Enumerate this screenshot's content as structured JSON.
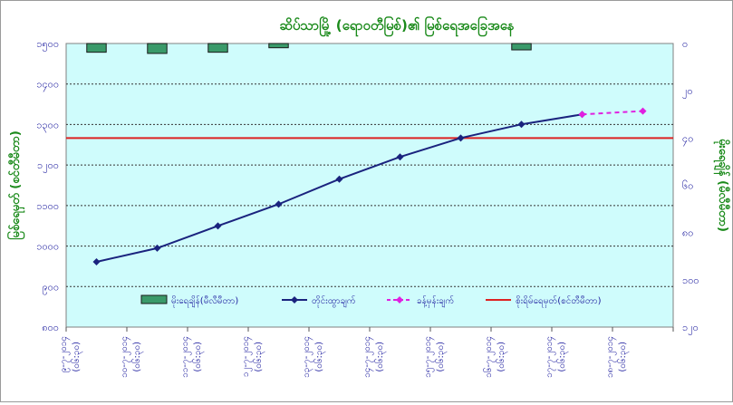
{
  "chart_data": {
    "type": "bar+line",
    "title": "ဆိပ်သာမြို့ (ရောဝတီမြစ်)၏ မြစ်ရေအခြေအနေ",
    "ylabel_left": "မြစ်ရေမှတ် (စင်တီမီတာ)",
    "ylabel_right": "မိုးရေချိန် (မီလီမီတာ)",
    "y_left_range": [
      900,
      1500
    ],
    "y_left_ticks": [
      "၁၅၀၀",
      "၁၄၀၀",
      "၁၃၀၀",
      "၁၂၀၀",
      "၁၁၀၀",
      "၁၀၀၀",
      "၉၀၀",
      "၈၀၀"
    ],
    "y_right_range": [
      0,
      120
    ],
    "y_right_ticks": [
      "၀",
      "၂၀",
      "၄၀",
      "၆၀",
      "၈၀",
      "၁၀၀",
      "၁၂၀"
    ],
    "categories": [
      [
        "၉-၇-၂၀၁၄",
        "(၀၆:၃၀)"
      ],
      [
        "၁၀-၇-၂၀၁၄",
        "(၀၆:၃၀)"
      ],
      [
        "၁၁-၇-၂၀၁၄",
        "(၀၆:၃၀)"
      ],
      [
        "၁၂-၇-၂၀၁၄",
        "(၀၆:၃၀)"
      ],
      [
        "၁၃-၇-၂၀၁၄",
        "(၀၆:၃၀)"
      ],
      [
        "၁၄-၇-၂၀၁၄",
        "(၀၆:၃၀)"
      ],
      [
        "၁၅-၇-၂၀၁၄",
        "(၀၆:၃၀)"
      ],
      [
        "၁၆-၇-၂၀၁၄",
        "(၀၆:၃၀)"
      ],
      [
        "၁၇-၇-၂၀၁၄",
        "(၀၆:၃၀)"
      ],
      [
        "၁၈-၇-၂၀၁၄",
        "(၀၆:၃၀)"
      ]
    ],
    "series": [
      {
        "name": "မိုးရေချိန်(မီလီမီတာ)",
        "kind": "bar",
        "axis": "right",
        "color": "#3a9a6a",
        "values": [
          3.7,
          4.2,
          3.7,
          1.8,
          null,
          null,
          null,
          2.7,
          null,
          null
        ]
      },
      {
        "name": "တိုင်းထွာချက်",
        "kind": "line",
        "axis": "left",
        "color": "#1a237e",
        "values": [
          1038,
          1067,
          1114,
          1160,
          1213,
          1260,
          1300,
          1329,
          1350,
          null
        ]
      },
      {
        "name": "ခန့်မှန်းချက်",
        "kind": "line-dashed",
        "axis": "left",
        "color": "#e020e0",
        "values": [
          null,
          null,
          null,
          null,
          null,
          null,
          null,
          null,
          1350,
          1357
        ]
      },
      {
        "name": "စိုးရိမ်ရေမှတ်(စင်တီမီတာ)",
        "kind": "hline",
        "axis": "left",
        "color": "#dd2222",
        "value": 1300
      }
    ],
    "grid": "horizontal-dotted",
    "legend_position": "bottom-inside",
    "background_color": "#cffcfc"
  }
}
